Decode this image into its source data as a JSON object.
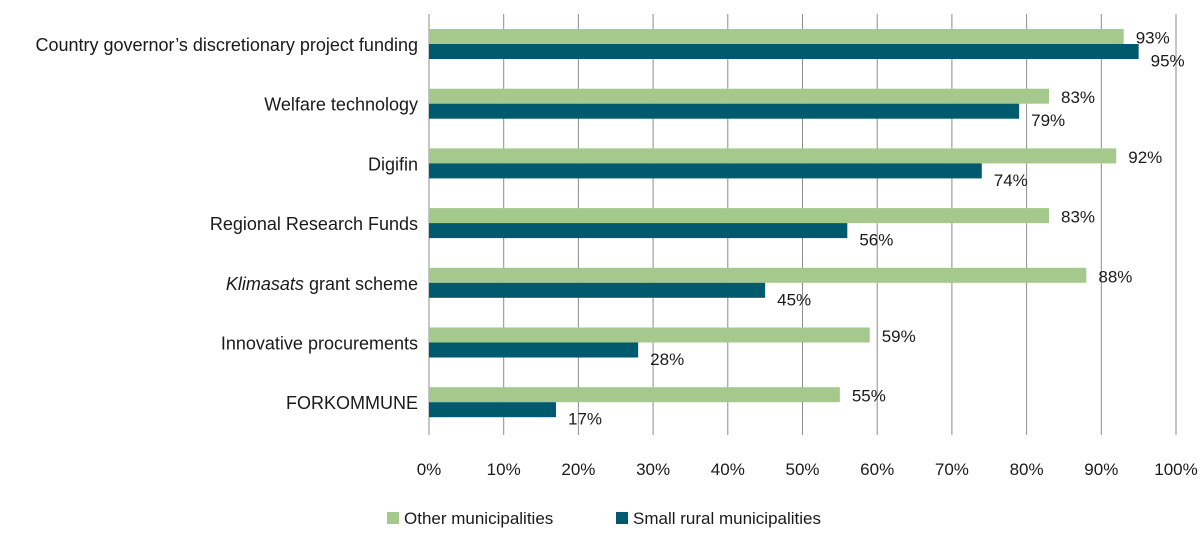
{
  "chart_data": {
    "type": "bar",
    "orientation": "horizontal",
    "categories": [
      {
        "text": "Country governor’s discretionary project funding",
        "italic_prefix": ""
      },
      {
        "text": " grant scheme",
        "italic_prefix": "Klimasats"
      },
      {
        "text": "Welfare technology",
        "italic_prefix": ""
      },
      {
        "text": "Digifin",
        "italic_prefix": ""
      },
      {
        "text": "Regional Research Funds",
        "italic_prefix": ""
      },
      {
        "text": "Innovative procurements",
        "italic_prefix": ""
      },
      {
        "text": "FORKOMMUNE",
        "italic_prefix": ""
      }
    ],
    "series": [
      {
        "name": "Other municipalities",
        "color": "#a5c98c",
        "values": [
          93,
          88,
          83,
          92,
          83,
          59,
          55
        ]
      },
      {
        "name": "Small rural municipalities",
        "color": "#005a6e",
        "values": [
          95,
          45,
          79,
          74,
          56,
          28,
          17
        ]
      }
    ],
    "xlim": [
      0,
      100
    ],
    "xticks": [
      "0%",
      "10%",
      "20%",
      "30%",
      "40%",
      "50%",
      "60%",
      "70%",
      "80%",
      "90%",
      "100%"
    ],
    "value_suffix": "%",
    "grid": true,
    "legend_position": "bottom"
  }
}
